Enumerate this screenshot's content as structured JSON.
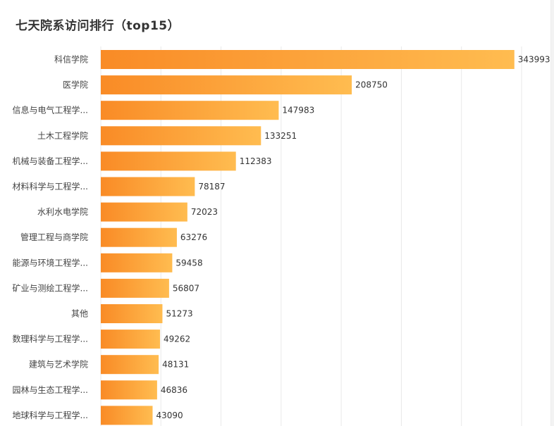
{
  "chart_data": {
    "type": "bar",
    "orientation": "horizontal",
    "title": "七天院系访问排行（top15）",
    "categories": [
      "科信学院",
      "医学院",
      "信息与电气工程学...",
      "土木工程学院",
      "机械与装备工程学...",
      "材料科学与工程学...",
      "水利水电学院",
      "管理工程与商学院",
      "能源与环境工程学...",
      "矿业与测绘工程学...",
      "其他",
      "数理科学与工程学...",
      "建筑与艺术学院",
      "园林与生态工程学...",
      "地球科学与工程学..."
    ],
    "values": [
      343993,
      208750,
      147983,
      133251,
      112383,
      78187,
      72023,
      63276,
      59458,
      56807,
      51273,
      49262,
      48131,
      46836,
      43090
    ],
    "xlim": [
      0,
      350000
    ],
    "grid": true,
    "legend": "none",
    "data_labels": true,
    "bar_gradient_start": "#f98b26",
    "bar_gradient_end": "#ffbc50"
  }
}
